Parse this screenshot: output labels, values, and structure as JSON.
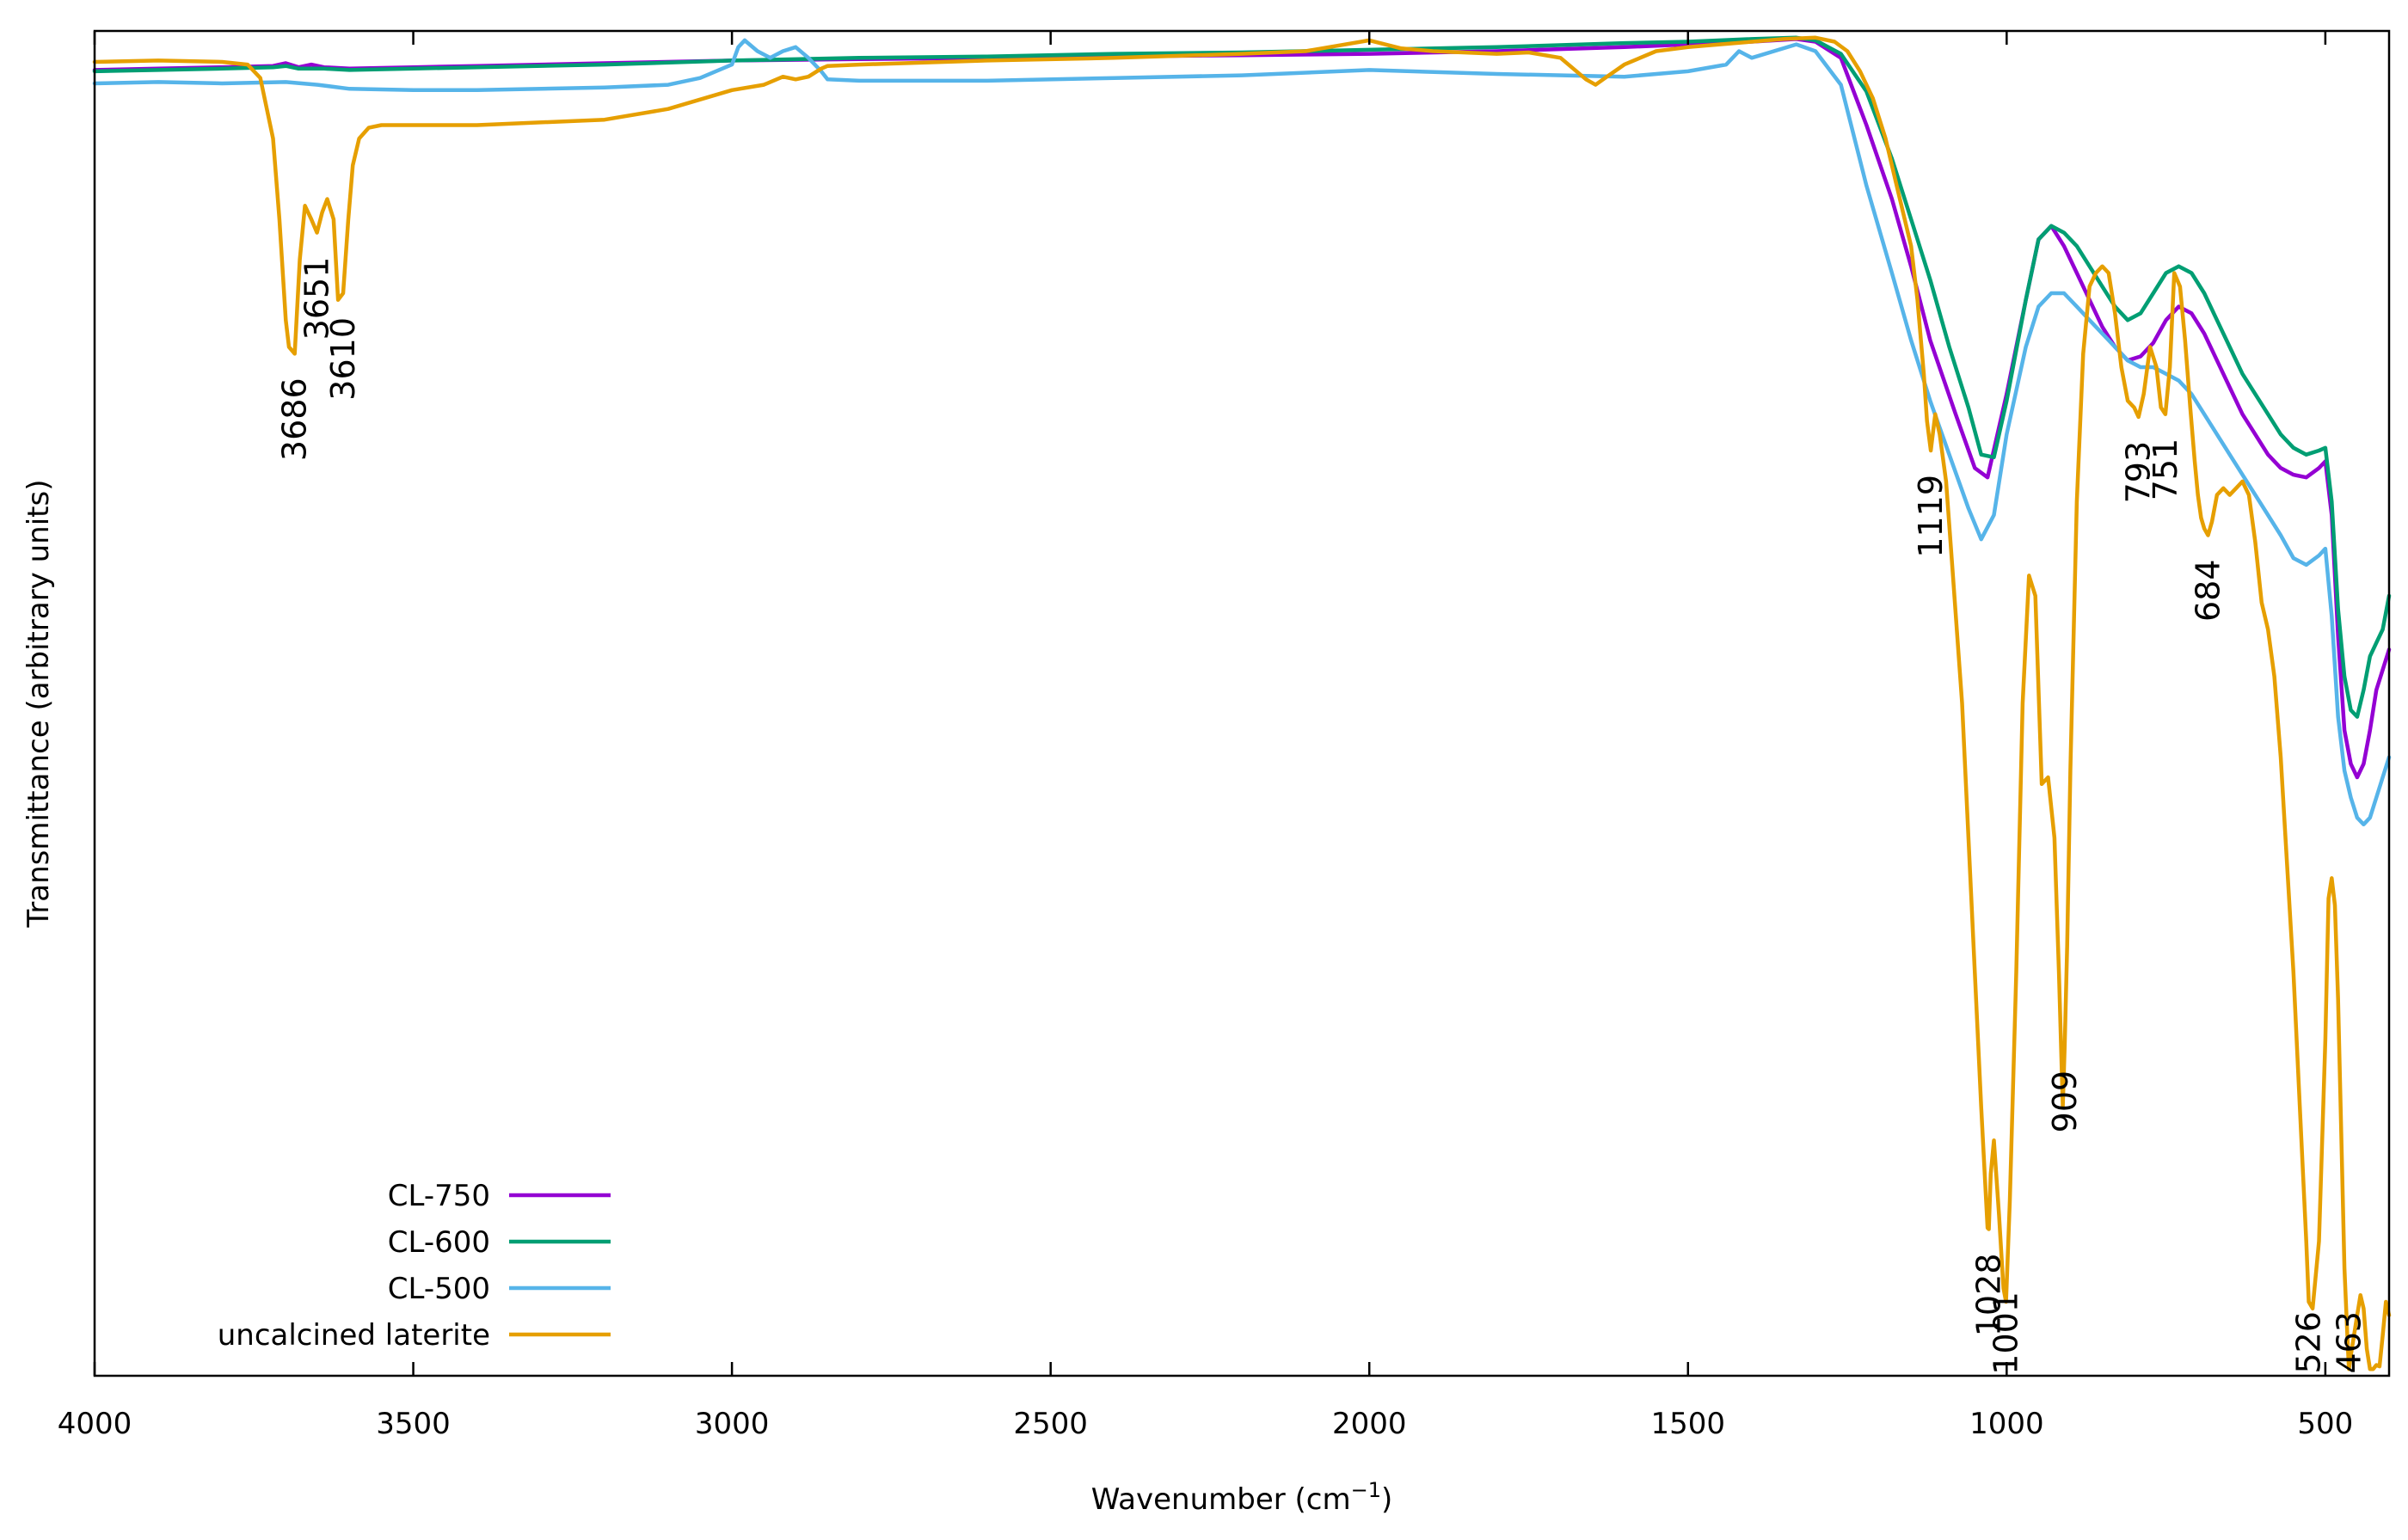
{
  "chart_data": {
    "type": "line",
    "title": "",
    "xlabel": "Wavenumber (cm",
    "xlabel_sup": "−1",
    "xlabel_close": ")",
    "ylabel": "Transmittance (arbitrary units)",
    "xlim": [
      4000,
      400
    ],
    "x_reversed": true,
    "ylim": [
      0,
      100
    ],
    "y_ticks_shown": false,
    "grid": false,
    "legend_position": "bottom-left",
    "x_ticks": [
      4000,
      3500,
      3000,
      2500,
      2000,
      1500,
      1000,
      500
    ],
    "x_tick_labels": [
      "4000",
      "3500",
      "3000",
      "2500",
      "2000",
      "1500",
      "1000",
      "500"
    ],
    "series": [
      {
        "name": "CL-750",
        "color": "#9400d3",
        "x": [
          4000,
          3900,
          3800,
          3720,
          3700,
          3680,
          3660,
          3640,
          3600,
          3500,
          3400,
          3200,
          3000,
          2800,
          2600,
          2400,
          2200,
          2000,
          1800,
          1600,
          1500,
          1400,
          1330,
          1300,
          1260,
          1220,
          1180,
          1150,
          1120,
          1080,
          1050,
          1030,
          1000,
          970,
          950,
          930,
          910,
          890,
          870,
          850,
          830,
          810,
          790,
          770,
          750,
          730,
          710,
          690,
          670,
          650,
          630,
          610,
          590,
          570,
          550,
          530,
          510,
          500,
          490,
          480,
          470,
          460,
          450,
          440,
          430,
          420,
          410,
          400
        ],
        "y": [
          97.1,
          97.2,
          97.3,
          97.4,
          97.6,
          97.3,
          97.5,
          97.3,
          97.2,
          97.3,
          97.4,
          97.6,
          97.8,
          97.9,
          98.0,
          98.1,
          98.2,
          98.3,
          98.5,
          98.8,
          99.0,
          99.2,
          99.4,
          99.2,
          98.0,
          93.0,
          87.5,
          82.5,
          77.0,
          71.5,
          67.5,
          66.8,
          73.0,
          80.0,
          84.5,
          85.5,
          84.0,
          82.0,
          80.0,
          78.0,
          76.5,
          75.5,
          75.8,
          76.8,
          78.5,
          79.5,
          79.0,
          77.5,
          75.5,
          73.5,
          71.5,
          70.0,
          68.5,
          67.5,
          67.0,
          66.8,
          67.5,
          68.0,
          64.0,
          55.0,
          48.0,
          45.5,
          44.5,
          45.5,
          48.0,
          51.0,
          52.5,
          54.0
        ]
      },
      {
        "name": "CL-600",
        "color": "#009e73",
        "x": [
          4000,
          3900,
          3800,
          3720,
          3700,
          3680,
          3640,
          3600,
          3500,
          3400,
          3200,
          3000,
          2800,
          2600,
          2400,
          2200,
          2000,
          1800,
          1600,
          1500,
          1400,
          1330,
          1300,
          1260,
          1220,
          1180,
          1150,
          1120,
          1090,
          1060,
          1040,
          1020,
          1000,
          970,
          950,
          930,
          910,
          890,
          870,
          850,
          830,
          810,
          790,
          770,
          750,
          730,
          710,
          690,
          670,
          650,
          630,
          610,
          590,
          570,
          550,
          530,
          510,
          500,
          490,
          480,
          470,
          460,
          450,
          440,
          430,
          420,
          410,
          400
        ],
        "y": [
          97.0,
          97.1,
          97.2,
          97.3,
          97.4,
          97.2,
          97.2,
          97.1,
          97.2,
          97.3,
          97.5,
          97.8,
          98.0,
          98.1,
          98.3,
          98.4,
          98.6,
          98.8,
          99.1,
          99.2,
          99.4,
          99.5,
          99.3,
          98.3,
          95.5,
          90.5,
          86.0,
          81.5,
          76.5,
          72.0,
          68.5,
          68.3,
          72.5,
          80.0,
          84.5,
          85.5,
          85.0,
          84.0,
          82.5,
          81.0,
          79.5,
          78.5,
          79.0,
          80.5,
          82.0,
          82.5,
          82.0,
          80.5,
          78.5,
          76.5,
          74.5,
          73.0,
          71.5,
          70.0,
          69.0,
          68.5,
          68.8,
          69.0,
          65.0,
          57.0,
          52.0,
          49.5,
          49.0,
          51.0,
          53.5,
          54.5,
          55.5,
          58.0
        ]
      },
      {
        "name": "CL-500",
        "color": "#56b4e9",
        "x": [
          4000,
          3900,
          3800,
          3700,
          3650,
          3600,
          3500,
          3400,
          3200,
          3100,
          3050,
          3000,
          2990,
          2980,
          2960,
          2940,
          2920,
          2900,
          2880,
          2860,
          2850,
          2800,
          2600,
          2400,
          2200,
          2000,
          1800,
          1600,
          1500,
          1440,
          1420,
          1400,
          1330,
          1300,
          1260,
          1220,
          1180,
          1150,
          1120,
          1090,
          1060,
          1040,
          1020,
          1000,
          970,
          950,
          930,
          910,
          890,
          870,
          850,
          830,
          810,
          790,
          770,
          750,
          730,
          710,
          690,
          670,
          650,
          630,
          610,
          590,
          570,
          550,
          530,
          510,
          500,
          490,
          480,
          470,
          460,
          450,
          440,
          430,
          420,
          410,
          400
        ],
        "y": [
          96.1,
          96.2,
          96.1,
          96.2,
          96.0,
          95.7,
          95.6,
          95.6,
          95.8,
          96.0,
          96.5,
          97.5,
          98.8,
          99.3,
          98.5,
          98.0,
          98.5,
          98.8,
          98.0,
          97.0,
          96.4,
          96.3,
          96.3,
          96.5,
          96.7,
          97.1,
          96.8,
          96.6,
          97.0,
          97.5,
          98.5,
          98.0,
          99.0,
          98.5,
          96.0,
          88.5,
          82.0,
          77.0,
          72.5,
          68.5,
          64.5,
          62.2,
          64.0,
          70.0,
          76.5,
          79.5,
          80.5,
          80.5,
          79.5,
          78.5,
          77.5,
          76.5,
          75.5,
          75.0,
          75.0,
          74.5,
          74.0,
          73.0,
          71.5,
          70.0,
          68.5,
          67.0,
          65.5,
          64.0,
          62.5,
          60.8,
          60.3,
          61.0,
          61.5,
          56.5,
          49.0,
          45.0,
          43.0,
          41.5,
          41.0,
          41.5,
          43.0,
          44.5,
          46.0
        ]
      },
      {
        "name": "uncalcined laterite",
        "color": "#e69f00",
        "x": [
          4000,
          3900,
          3800,
          3760,
          3740,
          3720,
          3710,
          3700,
          3695,
          3686,
          3678,
          3670,
          3660,
          3651,
          3643,
          3635,
          3625,
          3618,
          3610,
          3602,
          3595,
          3585,
          3570,
          3550,
          3500,
          3400,
          3200,
          3100,
          3000,
          2950,
          2920,
          2900,
          2880,
          2860,
          2850,
          2800,
          2600,
          2400,
          2200,
          2100,
          2050,
          2000,
          1950,
          1900,
          1800,
          1750,
          1700,
          1680,
          1660,
          1645,
          1630,
          1600,
          1550,
          1500,
          1450,
          1400,
          1350,
          1300,
          1270,
          1250,
          1230,
          1210,
          1190,
          1170,
          1150,
          1140,
          1130,
          1125,
          1119,
          1112,
          1105,
          1095,
          1085,
          1070,
          1060,
          1050,
          1040,
          1030,
          1028,
          1025,
          1020,
          1012,
          1005,
          1001,
          995,
          985,
          975,
          965,
          955,
          945,
          935,
          925,
          918,
          912,
          909,
          905,
          900,
          890,
          880,
          870,
          860,
          850,
          840,
          830,
          820,
          810,
          800,
          793,
          785,
          775,
          765,
          758,
          751,
          744,
          737,
          728,
          720,
          712,
          705,
          700,
          695,
          690,
          684,
          678,
          670,
          660,
          650,
          640,
          630,
          620,
          610,
          600,
          590,
          580,
          570,
          560,
          550,
          540,
          530,
          526,
          520,
          510,
          500,
          495,
          490,
          485,
          480,
          475,
          470,
          465,
          463,
          460,
          455,
          450,
          445,
          440,
          435,
          430,
          425,
          420,
          415,
          410,
          405,
          400
        ],
        "y": [
          97.7,
          97.8,
          97.7,
          97.5,
          96.5,
          92.0,
          86.0,
          78.5,
          76.5,
          76.0,
          83.0,
          87.0,
          86.0,
          85.0,
          86.5,
          87.5,
          86.0,
          80.0,
          80.5,
          86.0,
          90.0,
          92.0,
          92.8,
          93.0,
          93.0,
          93.0,
          93.4,
          94.2,
          95.6,
          96.0,
          96.6,
          96.4,
          96.6,
          97.2,
          97.4,
          97.5,
          97.8,
          98.0,
          98.3,
          98.5,
          98.9,
          99.3,
          98.7,
          98.5,
          98.3,
          98.4,
          98.0,
          97.2,
          96.4,
          96.0,
          96.5,
          97.5,
          98.5,
          98.8,
          99.0,
          99.2,
          99.4,
          99.5,
          99.2,
          98.5,
          97.0,
          95.0,
          92.0,
          88.0,
          84.0,
          80.0,
          74.5,
          71.0,
          68.8,
          71.5,
          70.0,
          66.5,
          60.0,
          50.0,
          40.0,
          30.0,
          20.0,
          11.0,
          10.9,
          15.0,
          17.5,
          12.0,
          6.5,
          5.5,
          13.0,
          30.0,
          50.0,
          59.5,
          58.0,
          44.0,
          44.5,
          40.0,
          30.0,
          20.0,
          24.5,
          32.0,
          45.0,
          65.0,
          76.0,
          81.0,
          82.0,
          82.5,
          82.0,
          79.0,
          75.0,
          72.5,
          72.0,
          71.3,
          73.0,
          76.5,
          75.0,
          72.0,
          71.5,
          75.0,
          82.0,
          81.0,
          77.0,
          72.0,
          68.0,
          65.5,
          63.8,
          63.0,
          62.5,
          63.5,
          65.5,
          66.0,
          65.5,
          66.0,
          66.5,
          65.5,
          62.0,
          57.5,
          55.5,
          52.0,
          46.0,
          38.0,
          30.0,
          20.0,
          10.0,
          5.5,
          5.0,
          10.0,
          25.0,
          35.5,
          37.0,
          35.0,
          28.0,
          18.0,
          8.0,
          2.5,
          0.5,
          1.5,
          3.0,
          4.5,
          6.0,
          5.0,
          2.0,
          0.5,
          0.5,
          0.8,
          0.7,
          3.0,
          5.5,
          4.5
        ]
      }
    ],
    "annotations": [
      {
        "text": "3686",
        "x": 3686,
        "y": 76.0
      },
      {
        "text": "3651",
        "x": 3651,
        "y": 85.0
      },
      {
        "text": "3610",
        "x": 3610,
        "y": 80.5
      },
      {
        "text": "1119",
        "x": 1119,
        "y": 68.8
      },
      {
        "text": "793",
        "x": 793,
        "y": 71.3
      },
      {
        "text": "751",
        "x": 751,
        "y": 71.5
      },
      {
        "text": "684",
        "x": 684,
        "y": 62.5
      },
      {
        "text": "909",
        "x": 909,
        "y": 24.5
      },
      {
        "text": "1028",
        "x": 1028,
        "y": 10.9
      },
      {
        "text": "1001",
        "x": 1001,
        "y": 5.5
      },
      {
        "text": "526",
        "x": 526,
        "y": 5.0
      },
      {
        "text": "463",
        "x": 463,
        "y": 0.5
      }
    ]
  }
}
